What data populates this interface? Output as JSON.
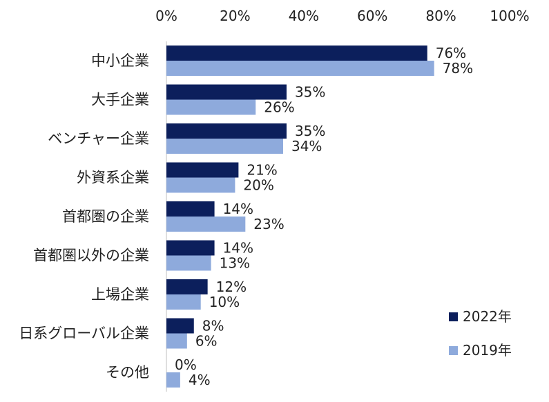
{
  "chart_data": {
    "type": "bar",
    "orientation": "horizontal",
    "categories": [
      "中小企業",
      "大手企業",
      "ベンチャー企業",
      "外資系企業",
      "首都圏の企業",
      "首都圏以外の企業",
      "上場企業",
      "日系グローバル企業",
      "その他"
    ],
    "series": [
      {
        "name": "2022年",
        "color": "#0c1f5c",
        "values": [
          76,
          35,
          35,
          21,
          14,
          14,
          12,
          8,
          0
        ],
        "labels": [
          "76%",
          "35%",
          "35%",
          "21%",
          "14%",
          "14%",
          "12%",
          "8%",
          "0%"
        ]
      },
      {
        "name": "2019年",
        "color": "#8eaadc",
        "values": [
          78,
          26,
          34,
          20,
          23,
          13,
          10,
          6,
          4
        ],
        "labels": [
          "78%",
          "26%",
          "34%",
          "20%",
          "23%",
          "13%",
          "10%",
          "6%",
          "4%"
        ]
      }
    ],
    "xlim": [
      0,
      100
    ],
    "x_ticks": [
      0,
      20,
      40,
      60,
      80,
      100
    ],
    "x_tick_labels": [
      "0%",
      "20%",
      "40%",
      "60%",
      "80%",
      "100%"
    ],
    "x_axis_position": "top",
    "grid": false,
    "legend_position": "bottom-right"
  }
}
